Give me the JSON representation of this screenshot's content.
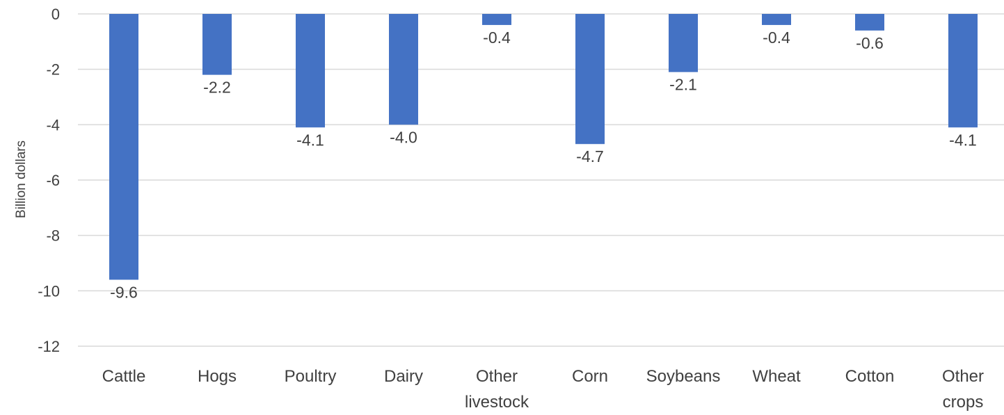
{
  "chart_data": {
    "type": "bar",
    "title": "",
    "xlabel": "",
    "ylabel": "Billion dollars",
    "ylim": [
      -12,
      0
    ],
    "yticks": [
      0,
      -2,
      -4,
      -6,
      -8,
      -10,
      -12
    ],
    "ytick_labels": [
      "0",
      "-2",
      "-4",
      "-6",
      "-8",
      "-10",
      "-12"
    ],
    "grid": true,
    "legend": "none",
    "bar_color": "#4472c4",
    "categories": [
      [
        "Cattle"
      ],
      [
        "Hogs"
      ],
      [
        "Poultry"
      ],
      [
        "Dairy"
      ],
      [
        "Other",
        "livestock"
      ],
      [
        "Corn"
      ],
      [
        "Soybeans"
      ],
      [
        "Wheat"
      ],
      [
        "Cotton"
      ],
      [
        "Other",
        "crops"
      ]
    ],
    "values": [
      -9.6,
      -2.2,
      -4.1,
      -4.0,
      -0.4,
      -4.7,
      -2.1,
      -0.4,
      -0.6,
      -4.1
    ],
    "data_labels": [
      "-9.6",
      "-2.2",
      "-4.1",
      "-4.0",
      "-0.4",
      "-4.7",
      "-2.1",
      "-0.4",
      "-0.6",
      "-4.1"
    ]
  }
}
